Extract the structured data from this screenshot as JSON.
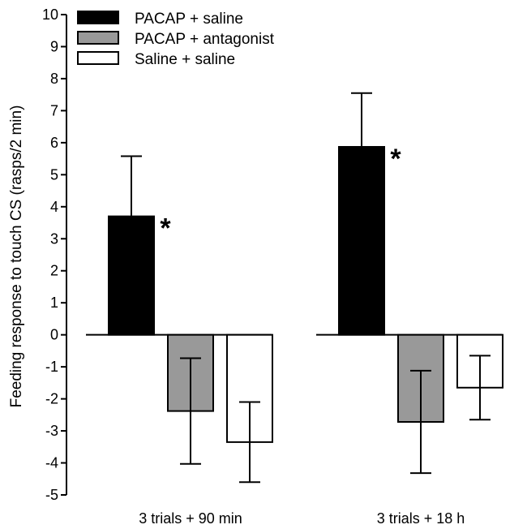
{
  "chart_data": {
    "type": "bar",
    "ylabel": "Feeding response to touch CS (rasps/2 min)",
    "ylim": [
      -5,
      10
    ],
    "yticks": [
      10,
      9,
      8,
      7,
      6,
      5,
      4,
      3,
      2,
      1,
      0,
      -1,
      -2,
      -3,
      -4,
      -5
    ],
    "categories": [
      "3 trials + 90 min",
      "3 trials + 18 h"
    ],
    "series": [
      {
        "name": "PACAP + saline",
        "color": "#000000",
        "values": [
          3.7,
          5.87
        ],
        "errors": [
          1.88,
          1.68
        ],
        "significance": [
          "*",
          "*"
        ]
      },
      {
        "name": "PACAP + antagonist",
        "color": "#999999",
        "values": [
          -2.38,
          -2.72
        ],
        "errors": [
          1.65,
          1.6
        ],
        "significance": [
          "",
          ""
        ]
      },
      {
        "name": "Saline + saline",
        "color": "#ffffff",
        "values": [
          -3.35,
          -1.65
        ],
        "errors": [
          1.25,
          1.0
        ],
        "significance": [
          "",
          ""
        ]
      }
    ],
    "grid": false,
    "legend": "top-left"
  }
}
